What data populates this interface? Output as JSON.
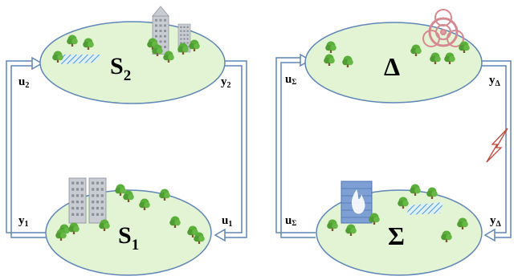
{
  "colors": {
    "ellipse_fill": "#e2f4d3",
    "ellipse_stroke": "#5f86b8",
    "arrow_stroke": "#5f86b8",
    "tree_leaf": "#5aae3a",
    "tree_trunk": "#7a5a2e",
    "building": "#c9ccd2",
    "wall": "#7e9fd4",
    "fire": "#ffffff",
    "biohazard": "#e39aa0",
    "lightning": "#c0463a",
    "water": "#4a9be0"
  },
  "left": {
    "top_node": {
      "main": "S",
      "sub": "2",
      "icons": [
        "tree-icon",
        "building-icon",
        "water-icon"
      ]
    },
    "bottom_node": {
      "main": "S",
      "sub": "1",
      "icons": [
        "tree-icon",
        "building-icon"
      ]
    },
    "ports": {
      "u_top": {
        "main": "u",
        "sub": "2"
      },
      "y_top": {
        "main": "y",
        "sub": "2"
      },
      "y_bottom": {
        "main": "y",
        "sub": "1"
      },
      "u_bottom": {
        "main": "u",
        "sub": "1"
      }
    }
  },
  "right": {
    "top_node": {
      "main": "Δ",
      "icons": [
        "tree-icon",
        "biohazard-icon"
      ]
    },
    "bottom_node": {
      "main": "Σ",
      "icons": [
        "tree-icon",
        "firewall-icon",
        "water-icon"
      ]
    },
    "ports": {
      "u_top": {
        "main": "u",
        "sub": "Σ"
      },
      "y_top": {
        "main": "y",
        "sub": "Δ"
      },
      "u_bottom": {
        "main": "u",
        "sub": "Σ"
      },
      "y_bottom": {
        "main": "y",
        "sub": "Δ"
      }
    },
    "attack_icon": "lightning-icon"
  }
}
